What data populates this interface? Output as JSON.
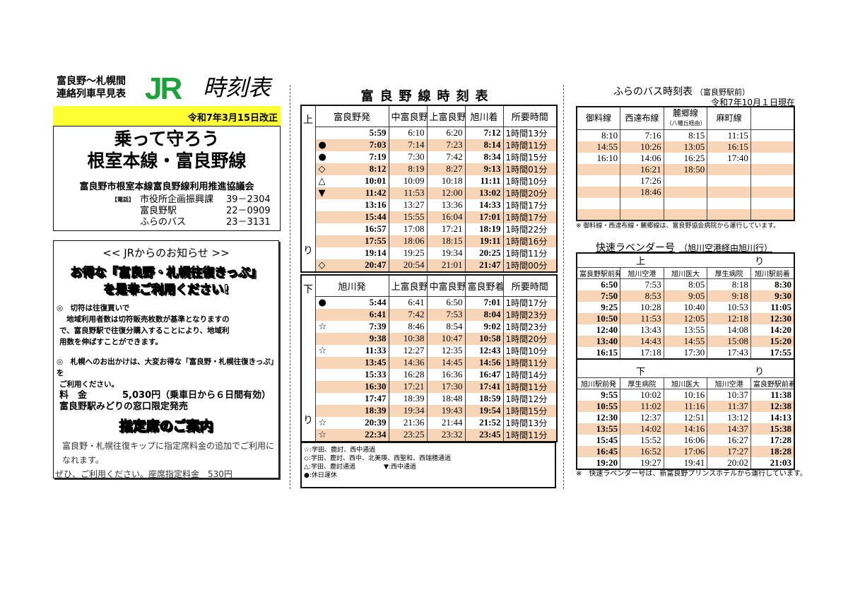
{
  "left": {
    "title_line1": "富良野～札幌間",
    "title_line2": "連絡列車早見表",
    "logo_text": "JR",
    "logo_suffix": "時刻表",
    "brand_color": "#1ba23a",
    "revision": "令和7年3月15日改正",
    "revision_bg": "#ffff33",
    "slogan_line1": "乗って守ろう",
    "slogan_line2": "根室本線・富良野線",
    "council": "富良野市根室本線富良野線利用推進協議会",
    "contact_label": "【電話】",
    "contacts": [
      {
        "name": "市役所企画振興課",
        "tel": "39－2304"
      },
      {
        "name": "富良野駅",
        "tel": "22－0909"
      },
      {
        "name": "ふらのバス",
        "tel": "23－3131"
      }
    ],
    "notice_title": "<< JRからのお知らせ >>",
    "promo_line1": "お得な『富良野・札幌往復きっぷ』",
    "promo_line2": "を是非ご利用ください!",
    "bullet1_line1": "◎　切符は往復買いで",
    "bullet1_line2": "地域利用者数は切符販売枚数が基準となりますの",
    "bullet1_line3": "で、富良野駅で往復分購入することにより、地域利",
    "bullet1_line4": "用数を伸ばすことができます。",
    "bullet2_line1": "◎　札幌へのお出かけは、大変お得な「富良野・札幌往復きっぷ」を",
    "bullet2_line2": "ご利用ください。",
    "fare_label": "料　金",
    "fare_value": "5,030円（乗車日から６日間有効）",
    "sales": "富良野駅みどりの窓口限定発売",
    "reserved_title": "指定席のご案内",
    "reserved_line1": "富良野・札幌往復キップに指定席料金の追加でご利用になれます。",
    "reserved_line2": "ぜひ、ご利用ください。座席指定料金　530円"
  },
  "middle": {
    "title": "富良野線時刻表",
    "highlight_color": "#f8d5b6",
    "up": {
      "side_top": "上",
      "side_bottom": "り",
      "headers": [
        "富良野発",
        "中富良野",
        "上富良野",
        "旭川着",
        "所要時間"
      ],
      "rows": [
        [
          "",
          "5:59",
          "6:10",
          "6:20",
          "7:12",
          "1時間13分"
        ],
        [
          "●",
          "7:03",
          "7:14",
          "7:23",
          "8:14",
          "1時間11分"
        ],
        [
          "●",
          "7:19",
          "7:30",
          "7:42",
          "8:34",
          "1時間15分"
        ],
        [
          "◇",
          "8:12",
          "8:19",
          "8:27",
          "9:13",
          "1時間01分"
        ],
        [
          "△",
          "10:01",
          "10:09",
          "10:18",
          "11:11",
          "1時間10分"
        ],
        [
          "▼",
          "11:42",
          "11:53",
          "12:00",
          "13:02",
          "1時間20分"
        ],
        [
          "",
          "13:16",
          "13:27",
          "13:36",
          "14:33",
          "1時間17分"
        ],
        [
          "",
          "15:44",
          "15:55",
          "16:04",
          "17:01",
          "1時間17分"
        ],
        [
          "",
          "16:57",
          "17:08",
          "17:21",
          "18:19",
          "1時間22分"
        ],
        [
          "",
          "17:55",
          "18:06",
          "18:15",
          "19:11",
          "1時間16分"
        ],
        [
          "",
          "19:14",
          "19:25",
          "19:34",
          "20:25",
          "1時間11分"
        ],
        [
          "◇",
          "20:47",
          "20:54",
          "21:01",
          "21:47",
          "1時間00分"
        ]
      ]
    },
    "down": {
      "side_top": "下",
      "side_bottom": "り",
      "headers": [
        "旭川発",
        "上富良野",
        "中富良野",
        "富良野着",
        "所要時間"
      ],
      "rows": [
        [
          "●",
          "5:44",
          "6:41",
          "6:50",
          "7:01",
          "1時間17分"
        ],
        [
          "",
          "6:41",
          "7:42",
          "7:53",
          "8:04",
          "1時間23分"
        ],
        [
          "☆",
          "7:39",
          "8:46",
          "8:54",
          "9:02",
          "1時間23分"
        ],
        [
          "",
          "9:38",
          "10:38",
          "10:47",
          "10:58",
          "1時間20分"
        ],
        [
          "☆",
          "11:33",
          "12:27",
          "12:35",
          "12:43",
          "1時間10分"
        ],
        [
          "",
          "13:45",
          "14:36",
          "14:45",
          "14:56",
          "1時間11分"
        ],
        [
          "",
          "15:33",
          "16:28",
          "16:36",
          "16:47",
          "1時間14分"
        ],
        [
          "",
          "16:30",
          "17:21",
          "17:30",
          "17:41",
          "1時間11分"
        ],
        [
          "",
          "17:47",
          "18:39",
          "18:48",
          "18:59",
          "1時間12分"
        ],
        [
          "",
          "18:39",
          "19:34",
          "19:43",
          "19:54",
          "1時間15分"
        ],
        [
          "☆",
          "20:39",
          "21:36",
          "21:44",
          "21:52",
          "1時間13分"
        ],
        [
          "☆",
          "22:34",
          "23:25",
          "23:32",
          "23:45",
          "1時間11分"
        ]
      ]
    },
    "legend": [
      "☆:学田、鹿討、西中通過",
      "◇:学田、鹿討、西中、北美瑛、西聖和、西瑞穂通過",
      "△:学田、鹿討通過",
      "▼:西中通過",
      "●:休日運休"
    ]
  },
  "right": {
    "bus_title": "ふらのバス時刻表",
    "bus_stop": "（富良野駅前）",
    "bus_date": "令和7年10月１日現在",
    "bus_headers": [
      "御料線",
      "西達布線",
      "麓郷線",
      "麻町線",
      ""
    ],
    "bus_header_sub": "（八幡丘経由）",
    "bus_rows": [
      [
        "8:10",
        "7:16",
        "8:15",
        "11:15",
        ""
      ],
      [
        "14:55",
        "10:26",
        "13:05",
        "16:15",
        ""
      ],
      [
        "16:10",
        "14:06",
        "16:25",
        "17:40",
        ""
      ],
      [
        "",
        "16:21",
        "18:50",
        "",
        ""
      ],
      [
        "",
        "17:26",
        "",
        "",
        ""
      ],
      [
        "",
        "18:46",
        "",
        "",
        ""
      ],
      [
        "",
        "",
        "",
        "",
        ""
      ],
      [
        "",
        "",
        "",
        "",
        ""
      ]
    ],
    "bus_note": "※ 御料線・西達布線・麓郷線は、富良野協会病院から運行しています。",
    "lav_title": "快速ラベンダー号",
    "lav_sub": "（旭川空港経由旭川行）",
    "lav_up": {
      "dir_left": "上",
      "dir_right": "り",
      "headers": [
        "富良野駅前発",
        "旭川空港",
        "旭川医大",
        "厚生病院",
        "旭川駅前着"
      ],
      "rows": [
        [
          "6:50",
          "7:53",
          "8:05",
          "8:18",
          "8:30"
        ],
        [
          "7:50",
          "8:53",
          "9:05",
          "9:18",
          "9:30"
        ],
        [
          "9:25",
          "10:28",
          "10:40",
          "10:53",
          "11:05"
        ],
        [
          "10:50",
          "11:53",
          "12:05",
          "12:18",
          "12:30"
        ],
        [
          "12:40",
          "13:43",
          "13:55",
          "14:08",
          "14:20"
        ],
        [
          "13:40",
          "14:43",
          "14:55",
          "15:08",
          "15:20"
        ],
        [
          "16:15",
          "17:18",
          "17:30",
          "17:43",
          "17:55"
        ]
      ]
    },
    "lav_down": {
      "dir_left": "下",
      "dir_right": "り",
      "headers": [
        "旭川駅前発",
        "厚生病院",
        "旭川医大",
        "旭川空港",
        "富良野駅前着"
      ],
      "rows": [
        [
          "9:55",
          "10:02",
          "10:16",
          "10:37",
          "11:38"
        ],
        [
          "10:55",
          "11:02",
          "11:16",
          "11:37",
          "12:38"
        ],
        [
          "12:30",
          "12:37",
          "12:51",
          "13:12",
          "14:13"
        ],
        [
          "13:55",
          "14:02",
          "14:16",
          "14:37",
          "15:38"
        ],
        [
          "15:45",
          "15:52",
          "16:06",
          "16:27",
          "17:28"
        ],
        [
          "16:45",
          "16:52",
          "17:06",
          "17:27",
          "18:28"
        ],
        [
          "19:20",
          "19:27",
          "19:41",
          "20:02",
          "21:03"
        ]
      ]
    },
    "lav_note": "※　快速ラベンダー号は、新富良野プリンスホテルから運行しています。"
  }
}
